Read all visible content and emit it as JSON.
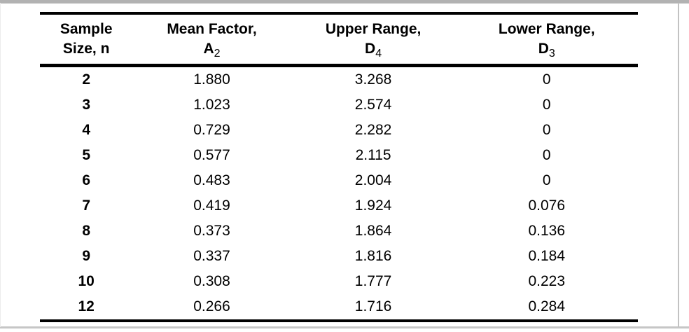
{
  "frame": {
    "background": "#ffffff",
    "border_gray": "#b2b2b2",
    "rule_black": "#000000"
  },
  "table": {
    "column_keys": [
      "n",
      "a2",
      "d4",
      "d3"
    ],
    "columns": [
      {
        "label": "Sample",
        "symbol": "Size, n",
        "sub": ""
      },
      {
        "label": "Mean Factor,",
        "symbol": "A",
        "sub": "2"
      },
      {
        "label": "Upper Range,",
        "symbol": "D",
        "sub": "4"
      },
      {
        "label": "Lower Range,",
        "symbol": "D",
        "sub": "3"
      }
    ],
    "rows": [
      [
        "2",
        "1.880",
        "3.268",
        "0"
      ],
      [
        "3",
        "1.023",
        "2.574",
        "0"
      ],
      [
        "4",
        "0.729",
        "2.282",
        "0"
      ],
      [
        "5",
        "0.577",
        "2.115",
        "0"
      ],
      [
        "6",
        "0.483",
        "2.004",
        "0"
      ],
      [
        "7",
        "0.419",
        "1.924",
        "0.076"
      ],
      [
        "8",
        "0.373",
        "1.864",
        "0.136"
      ],
      [
        "9",
        "0.337",
        "1.816",
        "0.184"
      ],
      [
        "10",
        "0.308",
        "1.777",
        "0.223"
      ],
      [
        "12",
        "0.266",
        "1.716",
        "0.284"
      ]
    ]
  },
  "chart_data": {
    "type": "table",
    "columns": [
      "Sample Size, n",
      "Mean Factor, A2",
      "Upper Range, D4",
      "Lower Range, D3"
    ],
    "rows": [
      [
        2,
        1.88,
        3.268,
        0
      ],
      [
        3,
        1.023,
        2.574,
        0
      ],
      [
        4,
        0.729,
        2.282,
        0
      ],
      [
        5,
        0.577,
        2.115,
        0
      ],
      [
        6,
        0.483,
        2.004,
        0
      ],
      [
        7,
        0.419,
        1.924,
        0.076
      ],
      [
        8,
        0.373,
        1.864,
        0.136
      ],
      [
        9,
        0.337,
        1.816,
        0.184
      ],
      [
        10,
        0.308,
        1.777,
        0.223
      ],
      [
        12,
        0.266,
        1.716,
        0.284
      ]
    ]
  }
}
